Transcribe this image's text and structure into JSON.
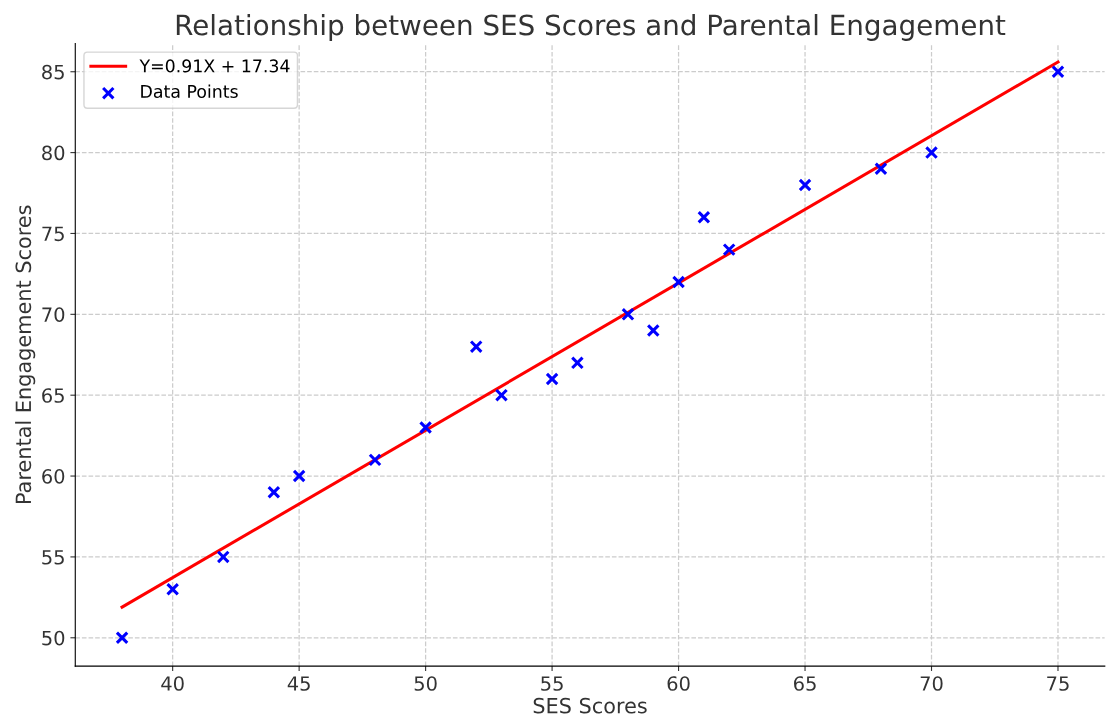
{
  "chart_data": {
    "type": "scatter",
    "title": "Relationship between SES Scores and Parental Engagement",
    "xlabel": "SES Scores",
    "ylabel": "Parental Engagement Scores",
    "series": [
      {
        "name": "Y=0.91X + 17.34",
        "type": "line",
        "color": "#ff0000",
        "x": [
          38,
          75
        ],
        "values": [
          51.9,
          85.6
        ]
      },
      {
        "name": "Data Points",
        "color": "#0000ff",
        "marker": "cross",
        "x": [
          38,
          40,
          42,
          44,
          45,
          48,
          50,
          52,
          53,
          55,
          56,
          58,
          59,
          60,
          61,
          62,
          65,
          68,
          70,
          75
        ],
        "values": [
          50,
          53,
          55,
          59,
          60,
          61,
          63,
          68,
          65,
          66,
          67,
          70,
          69,
          72,
          76,
          74,
          78,
          79,
          80,
          85
        ]
      }
    ],
    "xlim": [
      36.15,
      76.85
    ],
    "ylim": [
      48.25,
      86.75
    ],
    "xticks": [
      40,
      45,
      50,
      55,
      60,
      65,
      70,
      75
    ],
    "yticks": [
      50,
      55,
      60,
      65,
      70,
      75,
      80,
      85
    ],
    "grid": true,
    "legend": "top left"
  }
}
